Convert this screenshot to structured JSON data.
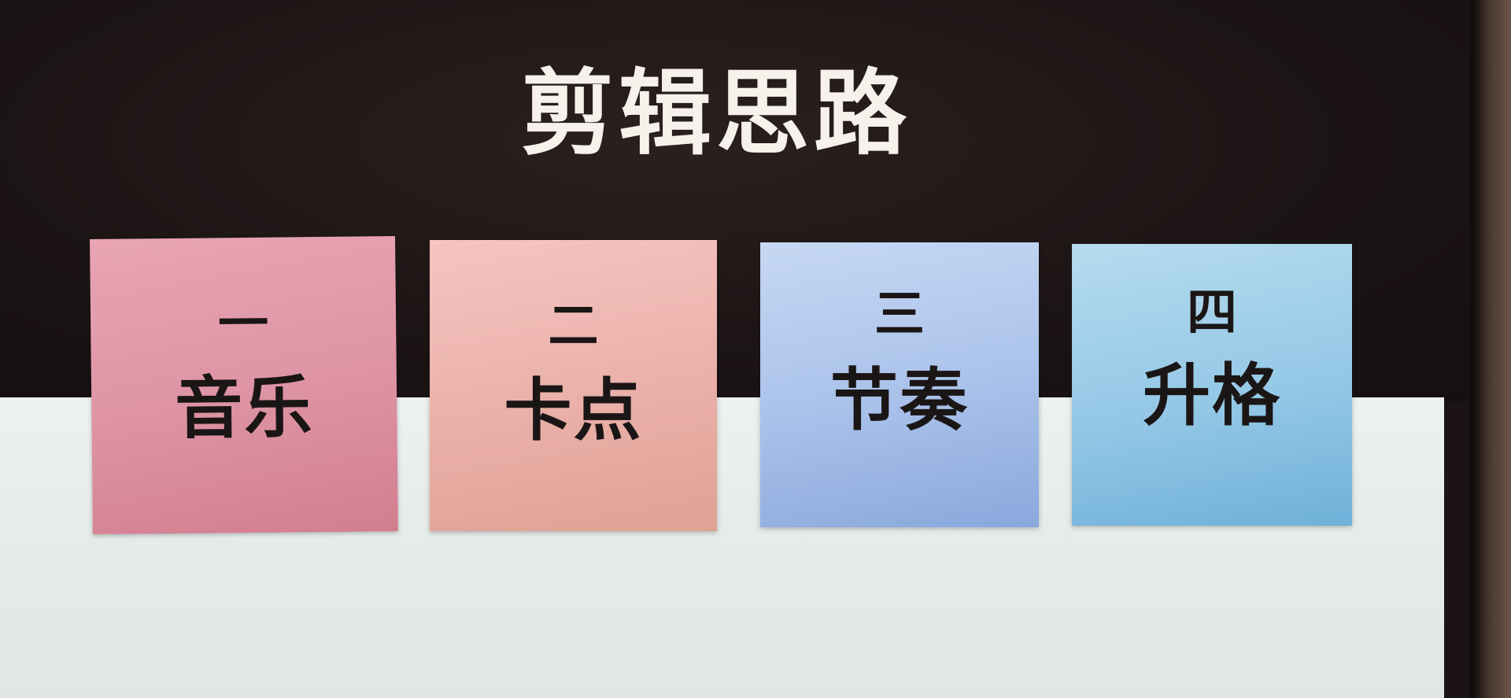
{
  "slide": {
    "title": "剪辑思路",
    "cards": [
      {
        "number": "一",
        "label": "音乐",
        "color": "#dd93a3"
      },
      {
        "number": "二",
        "label": "卡点",
        "color": "#eab0a9"
      },
      {
        "number": "三",
        "label": "节奏",
        "color": "#a9c1ea"
      },
      {
        "number": "四",
        "label": "升格",
        "color": "#94c8e6"
      }
    ]
  },
  "colors": {
    "background_dark": "#1c1414",
    "background_light": "#e6ece9",
    "title_text": "#f6f1ea",
    "card_text": "#1b1616"
  }
}
